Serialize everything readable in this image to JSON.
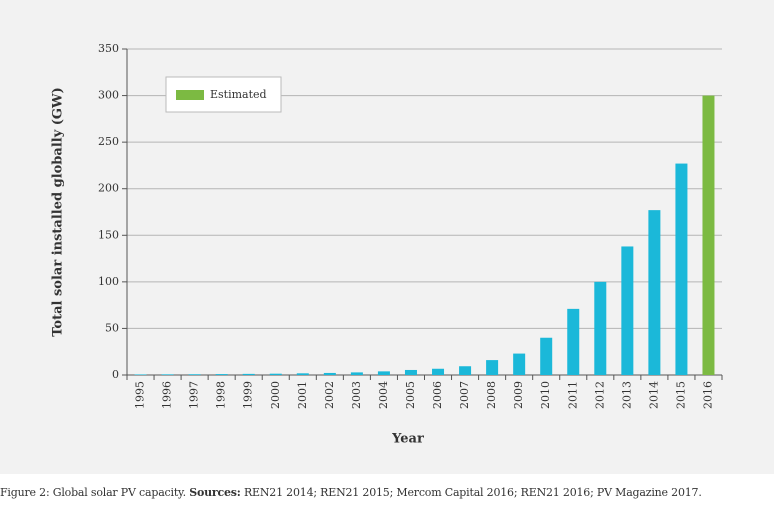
{
  "chart_data": {
    "type": "bar",
    "categories": [
      "1995",
      "1996",
      "1997",
      "1998",
      "1999",
      "2000",
      "2001",
      "2002",
      "2003",
      "2004",
      "2005",
      "2006",
      "2007",
      "2008",
      "2009",
      "2010",
      "2011",
      "2012",
      "2013",
      "2014",
      "2015",
      "2016"
    ],
    "values": [
      0.6,
      0.7,
      0.8,
      1.0,
      1.2,
      1.4,
      1.8,
      2.2,
      2.8,
      3.9,
      5.4,
      6.7,
      9.4,
      16,
      23,
      40,
      71,
      100,
      138,
      177,
      227,
      300
    ],
    "colors": [
      "#1bb8d9",
      "#1bb8d9",
      "#1bb8d9",
      "#1bb8d9",
      "#1bb8d9",
      "#1bb8d9",
      "#1bb8d9",
      "#1bb8d9",
      "#1bb8d9",
      "#1bb8d9",
      "#1bb8d9",
      "#1bb8d9",
      "#1bb8d9",
      "#1bb8d9",
      "#1bb8d9",
      "#1bb8d9",
      "#1bb8d9",
      "#1bb8d9",
      "#1bb8d9",
      "#1bb8d9",
      "#1bb8d9",
      "#7cba42"
    ],
    "legend": {
      "label": "Estimated",
      "color": "#7cba42",
      "position": "upper left"
    },
    "x_label": "Year",
    "y_label": "Total solar  installed globally (GW)",
    "ylim": [
      0,
      350
    ],
    "yticks": [
      0,
      50,
      100,
      150,
      200,
      250,
      300,
      350
    ],
    "grid": true
  },
  "caption": {
    "figure": "Figure 2:",
    "text": "Global solar PV capacity.",
    "sources_label": "Sources:",
    "sources": "REN21 2014; REN21 2015; Mercom Capital 2016; REN21 2016; PV Magazine 2017."
  }
}
